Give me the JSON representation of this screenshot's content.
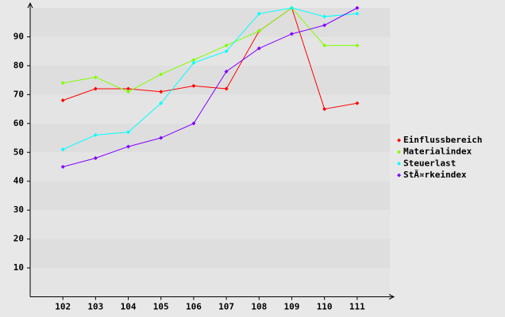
{
  "chart_data": {
    "type": "line",
    "categories": [
      "102",
      "103",
      "104",
      "105",
      "106",
      "107",
      "108",
      "109",
      "110",
      "111"
    ],
    "series": [
      {
        "name": "Einflussbereich",
        "color": "#ff0000",
        "values": [
          68,
          72,
          72,
          71,
          73,
          72,
          92,
          100,
          65,
          67
        ]
      },
      {
        "name": "Materialindex",
        "color": "#80ff00",
        "values": [
          74,
          76,
          71,
          77,
          82,
          87,
          92,
          100,
          87,
          87
        ]
      },
      {
        "name": "Steuerlast",
        "color": "#00ffff",
        "values": [
          51,
          56,
          57,
          67,
          81,
          85,
          98,
          100,
          97,
          98
        ]
      },
      {
        "name": "StÃ¤rkeindex",
        "color": "#8000ff",
        "values": [
          45,
          48,
          52,
          55,
          60,
          78,
          86,
          91,
          94,
          100
        ]
      }
    ],
    "ylim": [
      0,
      100
    ],
    "yticks": [
      10,
      20,
      30,
      40,
      50,
      60,
      70,
      80,
      90
    ],
    "grid": true,
    "legend": "right"
  }
}
